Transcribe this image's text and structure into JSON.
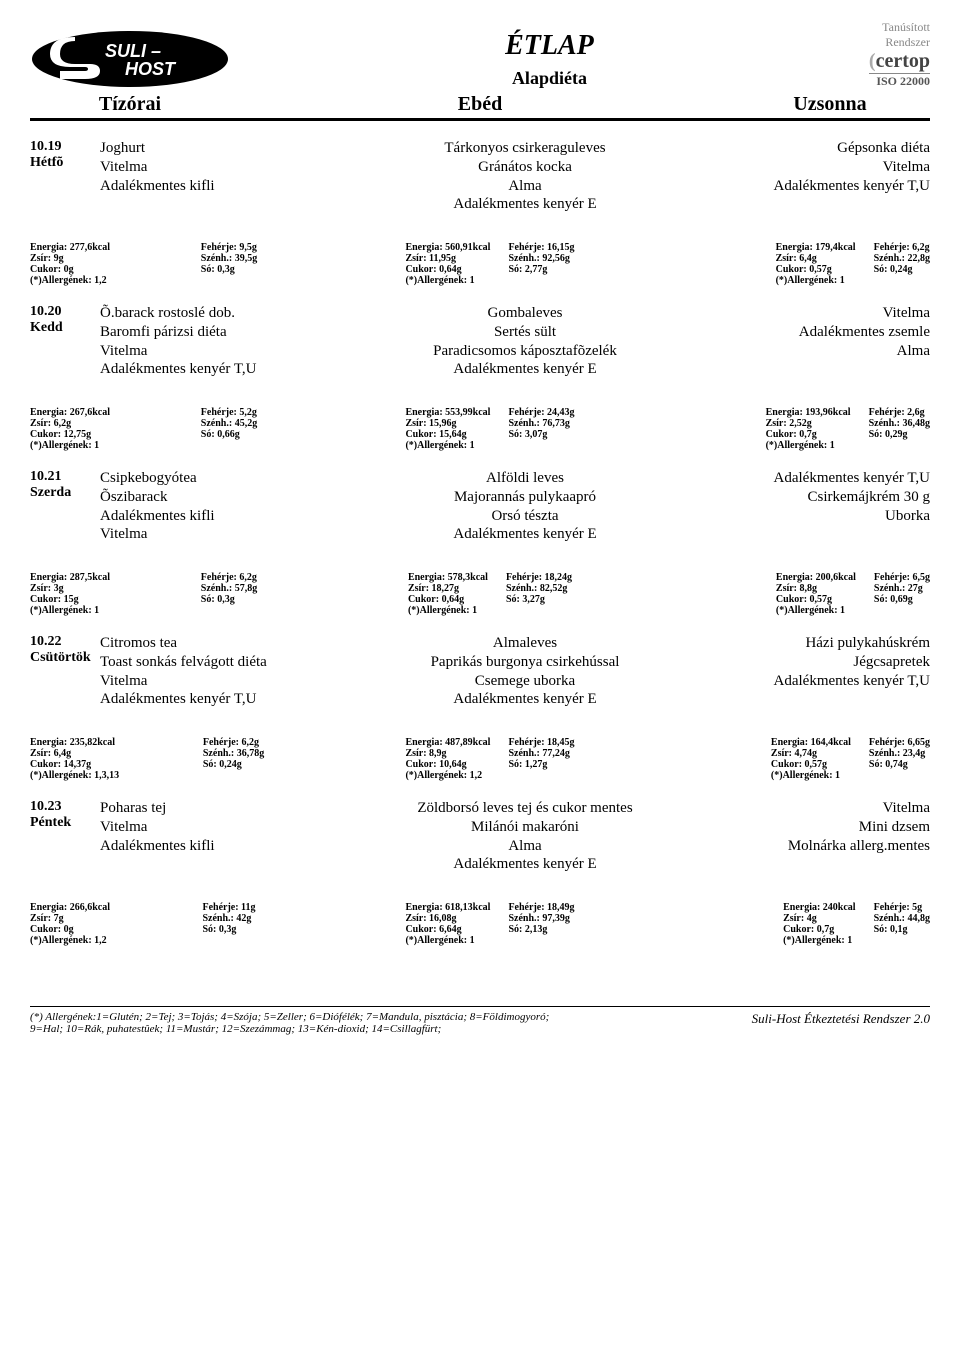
{
  "header": {
    "logo_text1": "SULI –",
    "logo_text2": "HOST",
    "title": "ÉTLAP",
    "subtitle": "Alapdiéta",
    "cert_line1": "Tanúsított",
    "cert_line2": "Rendszer",
    "cert_brand": "certop",
    "cert_iso": "ISO 22000",
    "col_left": "Tízórai",
    "col_mid": "Ebéd",
    "col_right": "Uzsonna"
  },
  "days": [
    {
      "date": "10.19",
      "name": "Hétfõ",
      "tizorai": [
        "Joghurt",
        "Vitelma",
        "Adalékmentes kifli"
      ],
      "ebed": [
        "Tárkonyos csirkeraguleves",
        "Gránátos kocka",
        "Alma",
        "Adalékmentes kenyér E"
      ],
      "uzsonna": [
        "Gépsonka diéta",
        "Vitelma",
        "Adalékmentes kenyér T,U"
      ],
      "nut": {
        "t": {
          "en": "Energia: 277,6kcal",
          "zs": "Zsír: 9g",
          "cu": "Cukor: 0g",
          "al": "(*)Allergének: 1,2",
          "fe": "Fehérje: 9,5g",
          "sz": "Szénh.: 39,5g",
          "so": "Só: 0,3g"
        },
        "e": {
          "en": "Energia: 560,91kcal",
          "zs": "Zsír: 11,95g",
          "cu": "Cukor: 0,64g",
          "al": "(*)Allergének: 1",
          "fe": "Fehérje: 16,15g",
          "sz": "Szénh.: 92,56g",
          "so": "Só: 2,77g"
        },
        "u": {
          "en": "Energia: 179,4kcal",
          "zs": "Zsír: 6,4g",
          "cu": "Cukor: 0,57g",
          "al": "(*)Allergének: 1",
          "fe": "Fehérje: 6,2g",
          "sz": "Szénh.: 22,8g",
          "so": "Só: 0,24g"
        }
      }
    },
    {
      "date": "10.20",
      "name": "Kedd",
      "tizorai": [
        "Õ.barack rostoslé dob.",
        "Baromfi párizsi diéta",
        "Vitelma",
        "Adalékmentes kenyér T,U"
      ],
      "ebed": [
        "Gombaleves",
        "Sertés sült",
        "Paradicsomos káposztafõzelék",
        "Adalékmentes kenyér E"
      ],
      "uzsonna": [
        "Vitelma",
        "Adalékmentes zsemle",
        "Alma"
      ],
      "nut": {
        "t": {
          "en": "Energia: 267,6kcal",
          "zs": "Zsír: 6,2g",
          "cu": "Cukor: 12,75g",
          "al": "(*)Allergének: 1",
          "fe": "Fehérje: 5,2g",
          "sz": "Szénh.: 45,2g",
          "so": "Só: 0,66g"
        },
        "e": {
          "en": "Energia: 553,99kcal",
          "zs": "Zsír: 15,96g",
          "cu": "Cukor: 15,64g",
          "al": "(*)Allergének: 1",
          "fe": "Fehérje: 24,43g",
          "sz": "Szénh.: 76,73g",
          "so": "Só: 3,07g"
        },
        "u": {
          "en": "Energia: 193,96kcal",
          "zs": "Zsír: 2,52g",
          "cu": "Cukor: 0,7g",
          "al": "(*)Allergének: 1",
          "fe": "Fehérje: 2,6g",
          "sz": "Szénh.: 36,48g",
          "so": "Só: 0,29g"
        }
      }
    },
    {
      "date": "10.21",
      "name": "Szerda",
      "tizorai": [
        "Csipkebogyótea",
        "Õszibarack",
        "Adalékmentes kifli",
        "Vitelma"
      ],
      "ebed": [
        "Alföldi leves",
        "Majorannás pulykaapró",
        "Orsó tészta",
        "Adalékmentes kenyér E"
      ],
      "uzsonna": [
        "Adalékmentes kenyér T,U",
        "Csirkemájkrém 30 g",
        "Uborka"
      ],
      "nut": {
        "t": {
          "en": "Energia: 287,5kcal",
          "zs": "Zsír: 3g",
          "cu": "Cukor: 15g",
          "al": "(*)Allergének: 1",
          "fe": "Fehérje: 6,2g",
          "sz": "Szénh.: 57,8g",
          "so": "Só: 0,3g"
        },
        "e": {
          "en": "Energia: 578,3kcal",
          "zs": "Zsír: 18,27g",
          "cu": "Cukor: 0,64g",
          "al": "(*)Allergének: 1",
          "fe": "Fehérje: 18,24g",
          "sz": "Szénh.: 82,52g",
          "so": "Só: 3,27g"
        },
        "u": {
          "en": "Energia: 200,6kcal",
          "zs": "Zsír: 8,8g",
          "cu": "Cukor: 0,57g",
          "al": "(*)Allergének: 1",
          "fe": "Fehérje: 6,5g",
          "sz": "Szénh.: 27g",
          "so": "Só: 0,69g"
        }
      }
    },
    {
      "date": "10.22",
      "name": "Csütörtök",
      "tizorai": [
        "Citromos tea",
        "Toast sonkás felvágott diéta",
        "Vitelma",
        "Adalékmentes kenyér T,U"
      ],
      "ebed": [
        "Almaleves",
        "Paprikás burgonya csirkehússal",
        "Csemege uborka",
        "Adalékmentes kenyér E"
      ],
      "uzsonna": [
        "Házi pulykahúskrém",
        "Jégcsapretek",
        "Adalékmentes kenyér T,U"
      ],
      "nut": {
        "t": {
          "en": "Energia: 235,82kcal",
          "zs": "Zsír: 6,4g",
          "cu": "Cukor: 14,37g",
          "al": "(*)Allergének: 1,3,13",
          "fe": "Fehérje: 6,2g",
          "sz": "Szénh.: 36,78g",
          "so": "Só: 0,24g"
        },
        "e": {
          "en": "Energia: 487,89kcal",
          "zs": "Zsír: 8,9g",
          "cu": "Cukor: 10,64g",
          "al": "(*)Allergének: 1,2",
          "fe": "Fehérje: 18,45g",
          "sz": "Szénh.: 77,24g",
          "so": "Só: 1,27g"
        },
        "u": {
          "en": "Energia: 164,4kcal",
          "zs": "Zsír: 4,74g",
          "cu": "Cukor: 0,57g",
          "al": "(*)Allergének: 1",
          "fe": "Fehérje: 6,65g",
          "sz": "Szénh.: 23,4g",
          "so": "Só: 0,74g"
        }
      }
    },
    {
      "date": "10.23",
      "name": "Péntek",
      "tizorai": [
        "Poharas tej",
        "Vitelma",
        "Adalékmentes kifli"
      ],
      "ebed": [
        "Zöldborsó leves tej és cukor mentes",
        "Milánói makaróni",
        "Alma",
        "Adalékmentes kenyér E"
      ],
      "uzsonna": [
        "Vitelma",
        "Mini dzsem",
        "Molnárka allerg.mentes"
      ],
      "nut": {
        "t": {
          "en": "Energia: 266,6kcal",
          "zs": "Zsír: 7g",
          "cu": "Cukor: 0g",
          "al": "(*)Allergének: 1,2",
          "fe": "Fehérje: 11g",
          "sz": "Szénh.: 42g",
          "so": "Só: 0,3g"
        },
        "e": {
          "en": "Energia: 618,13kcal",
          "zs": "Zsír: 16,08g",
          "cu": "Cukor: 6,64g",
          "al": "(*)Allergének: 1",
          "fe": "Fehérje: 18,49g",
          "sz": "Szénh.: 97,39g",
          "so": "Só: 2,13g"
        },
        "u": {
          "en": "Energia: 240kcal",
          "zs": "Zsír: 4g",
          "cu": "Cukor: 0,7g",
          "al": "(*)Allergének: 1",
          "fe": "Fehérje: 5g",
          "sz": "Szénh.: 44,8g",
          "so": "Só: 0,1g"
        }
      }
    }
  ],
  "footer": {
    "left1": "(*) Allergének:1=Glutén; 2=Tej; 3=Tojás; 4=Szója; 5=Zeller; 6=Diófélék; 7=Mandula, pisztácia; 8=Földimogyoró;",
    "left2": "9=Hal; 10=Rák, puhatestûek; 11=Mustár; 12=Szezámmag; 13=Kén-dioxid; 14=Csillagfürt;",
    "right": "Suli-Host Étkeztetési Rendszer 2.0"
  }
}
